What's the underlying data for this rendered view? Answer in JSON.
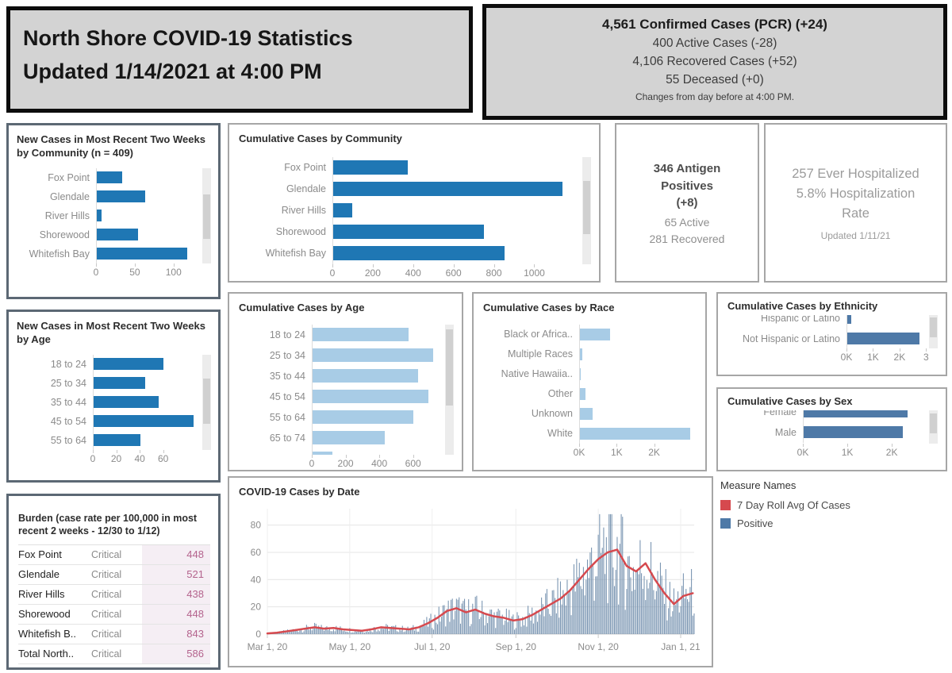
{
  "header": {
    "title_line1": "North Shore COVID-19 Statistics",
    "title_line2": "Updated 1/14/2021 at 4:00 PM"
  },
  "summary_box": {
    "confirmed": "4,561  Confirmed Cases (PCR) (+24)",
    "active": "400 Active Cases (-28)",
    "recovered": "4,106  Recovered Cases (+52)",
    "deceased": "55  Deceased (+0)",
    "footnote": "Changes from day before  at 4:00 PM."
  },
  "antigen_box": {
    "line1": "346 Antigen Positives",
    "line2": "(+8)",
    "line3": "65 Active",
    "line4": "281 Recovered"
  },
  "hospital_box": {
    "line1": "257 Ever Hospitalized",
    "line2": "5.8% Hospitalization Rate",
    "line3": "Updated 1/11/21"
  },
  "burden_table": {
    "title": "Burden (case rate per 100,000 in most recent 2 weeks - 12/30 to 1/12)",
    "rows": [
      {
        "name": "Fox Point",
        "level": "Critical",
        "value": "448"
      },
      {
        "name": "Glendale",
        "level": "Critical",
        "value": "521"
      },
      {
        "name": "River Hills",
        "level": "Critical",
        "value": "438"
      },
      {
        "name": "Shorewood",
        "level": "Critical",
        "value": "448"
      },
      {
        "name": "Whitefish B..",
        "level": "Critical",
        "value": "843"
      },
      {
        "name": "Total North..",
        "level": "Critical",
        "value": "586"
      }
    ]
  },
  "legend": {
    "title": "Measure Names",
    "items": [
      {
        "label": "7 Day Roll Avg Of Cases",
        "color": "#d6494e"
      },
      {
        "label": "Positive",
        "color": "#4e79a7"
      }
    ]
  },
  "colors": {
    "strong_blue": "#1f77b4",
    "light_blue": "#a8cce6",
    "steel_blue": "#4e79a7",
    "daily_bar_blue": "#7793b0",
    "line_red": "#d6494e",
    "header_gray": "#d3d3d3"
  },
  "chart_data": [
    {
      "type": "bar",
      "orientation": "horizontal",
      "title": "New Cases in Most Recent Two Weeks by Community (n = 409)",
      "categories": [
        "Fox Point",
        "Glendale",
        "River Hills",
        "Shorewood",
        "Whitefish Bay"
      ],
      "values": [
        33,
        63,
        6,
        54,
        117
      ],
      "xticks": [
        0,
        50,
        100
      ],
      "xtick_labels": [
        "0",
        "50",
        "100"
      ],
      "xmax": 135,
      "color": "#1f77b4"
    },
    {
      "type": "bar",
      "orientation": "horizontal",
      "title": "New Cases in Most Recent Two Weeks by Age",
      "categories": [
        "18 to 24",
        "25 to 34",
        "35 to 44",
        "45 to 54",
        "55 to 64"
      ],
      "values": [
        60,
        44,
        56,
        86,
        40
      ],
      "xticks": [
        0,
        20,
        40,
        60
      ],
      "xtick_labels": [
        "0",
        "20",
        "40",
        "60"
      ],
      "xmax": 92,
      "color": "#1f77b4"
    },
    {
      "type": "bar",
      "orientation": "horizontal",
      "title": "Cumulative Cases by Community",
      "categories": [
        "Fox Point",
        "Glendale",
        "River Hills",
        "Shorewood",
        "Whitefish Bay"
      ],
      "values": [
        370,
        1140,
        95,
        750,
        850
      ],
      "xticks": [
        0,
        200,
        400,
        600,
        800,
        1000
      ],
      "xtick_labels": [
        "0",
        "200",
        "400",
        "600",
        "800",
        "1000"
      ],
      "xmax": 1230,
      "color": "#1f77b4"
    },
    {
      "type": "bar",
      "orientation": "horizontal",
      "title": "Cumulative Cases by Age",
      "categories": [
        "18 to 24",
        "25 to 34",
        "35 to 44",
        "45 to 54",
        "55 to 64",
        "65 to 74",
        ""
      ],
      "values": [
        570,
        720,
        630,
        690,
        600,
        430,
        120
      ],
      "xticks": [
        0,
        200,
        400,
        600
      ],
      "xtick_labels": [
        "0",
        "200",
        "400",
        "600"
      ],
      "xmax": 780,
      "color": "#a8cce6"
    },
    {
      "type": "bar",
      "orientation": "horizontal",
      "title": "Cumulative Cases by Race",
      "categories": [
        "Black or Africa..",
        "Multiple Races",
        "Native Hawaiia..",
        "Other",
        "Unknown",
        "White"
      ],
      "values": [
        800,
        60,
        25,
        150,
        350,
        2950
      ],
      "xticks": [
        0,
        1000,
        2000
      ],
      "xtick_labels": [
        "0K",
        "1K",
        "2K"
      ],
      "xmax": 3150,
      "color": "#a8cce6"
    },
    {
      "type": "bar",
      "orientation": "horizontal",
      "title": "Cumulative Cases by Ethnicity",
      "categories": [
        "Hispanic or Latino",
        "Not Hispanic or Latino"
      ],
      "values": [
        140,
        2760
      ],
      "xticks": [
        0,
        1000,
        2000,
        3000
      ],
      "xtick_labels": [
        "0K",
        "1K",
        "2K",
        "3"
      ],
      "xmax": 3050,
      "color": "#4e79a7"
    },
    {
      "type": "bar",
      "orientation": "horizontal",
      "title": "Cumulative Cases by Sex",
      "categories": [
        "Female",
        "Male"
      ],
      "values": [
        2350,
        2250
      ],
      "xticks": [
        0,
        1000,
        2000
      ],
      "xtick_labels": [
        "0K",
        "1K",
        "2K"
      ],
      "xmax": 2800,
      "color": "#4e79a7"
    },
    {
      "type": "line+bar",
      "title": "COVID-19 Cases by Date",
      "x_tick_labels": [
        "Mar 1, 20",
        "May 1, 20",
        "Jul 1, 20",
        "Sep 1, 20",
        "Nov 1, 20",
        "Jan 1, 21"
      ],
      "x_tick_days": [
        0,
        61,
        122,
        184,
        245,
        306
      ],
      "yticks": [
        0,
        20,
        40,
        60,
        80
      ],
      "ylim": [
        0,
        92
      ],
      "total_days": 317,
      "series": [
        {
          "name": "7 Day Roll Avg Of Cases",
          "type": "line",
          "color": "#d6494e",
          "x_days": [
            0,
            7,
            14,
            21,
            28,
            35,
            42,
            49,
            56,
            63,
            70,
            77,
            84,
            91,
            98,
            105,
            112,
            119,
            126,
            133,
            140,
            147,
            154,
            161,
            168,
            175,
            182,
            189,
            196,
            203,
            210,
            217,
            224,
            231,
            238,
            245,
            252,
            259,
            266,
            273,
            280,
            287,
            294,
            301,
            308,
            315
          ],
          "values": [
            0.5,
            1,
            2,
            3,
            4,
            5,
            4,
            4.5,
            3.5,
            3,
            2.5,
            3.5,
            5,
            4.5,
            4,
            3.5,
            5,
            8,
            12,
            17,
            19,
            16,
            18,
            15,
            13,
            12,
            10,
            11,
            14,
            18,
            22,
            26,
            32,
            40,
            48,
            55,
            60,
            62,
            50,
            46,
            52,
            40,
            30,
            22,
            28,
            30
          ]
        },
        {
          "name": "Positive",
          "type": "bar",
          "color": "#7793b0",
          "note": "daily positive cases; bars vary around the 7-day rolling average, peak day about 87"
        }
      ]
    }
  ]
}
